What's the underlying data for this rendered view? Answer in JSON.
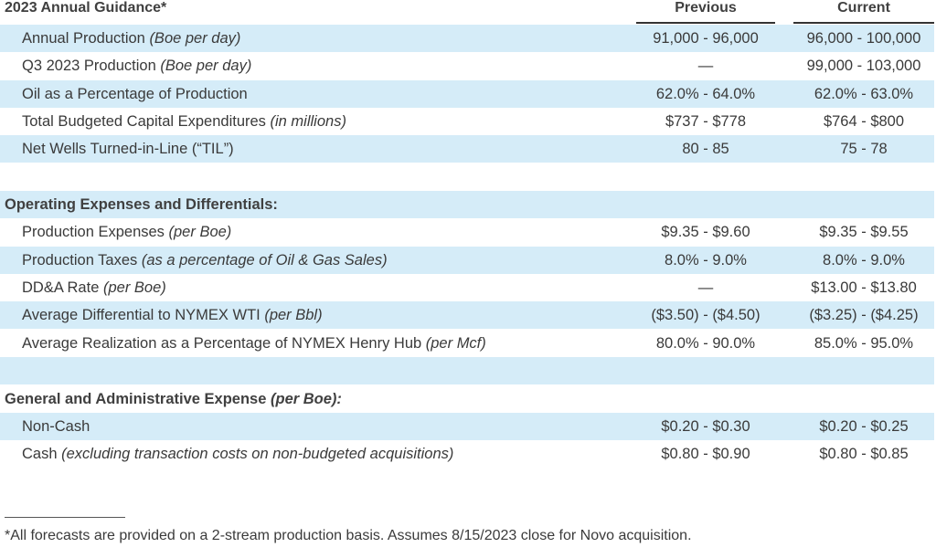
{
  "header": {
    "title": "2023 Annual Guidance*",
    "col_previous": "Previous",
    "col_current": "Current"
  },
  "rows": [
    {
      "label": "Annual Production ",
      "note": "(Boe per day)",
      "previous": "91,000 - 96,000",
      "current": "96,000 - 100,000"
    },
    {
      "label": "Q3 2023 Production ",
      "note": "(Boe per day)",
      "previous": "—",
      "current": "99,000 - 103,000"
    },
    {
      "label": "Oil as a Percentage of Production",
      "note": "",
      "previous": "62.0% - 64.0%",
      "current": "62.0% - 63.0%"
    },
    {
      "label": "Total Budgeted Capital Expenditures ",
      "note": "(in millions)",
      "previous": "$737 - $778",
      "current": "$764 - $800"
    },
    {
      "label": "Net Wells Turned-in-Line (“TIL”)",
      "note": "",
      "previous": "80 - 85",
      "current": "75 - 78"
    },
    {
      "label": "",
      "note": "",
      "previous": "",
      "current": ""
    },
    {
      "section": "Operating Expenses and Differentials:",
      "section_note": ""
    },
    {
      "label": "Production Expenses ",
      "note": "(per Boe)",
      "previous": "$9.35 - $9.60",
      "current": "$9.35 - $9.55"
    },
    {
      "label": "Production Taxes ",
      "note": "(as a percentage of Oil & Gas Sales)",
      "previous": "8.0% - 9.0%",
      "current": "8.0% - 9.0%"
    },
    {
      "label": "DD&A Rate ",
      "note": "(per Boe)",
      "previous": "—",
      "current": "$13.00 - $13.80"
    },
    {
      "label": "Average Differential to NYMEX WTI ",
      "note": "(per Bbl)",
      "previous": "($3.50) - ($4.50)",
      "current": "($3.25) - ($4.25)"
    },
    {
      "label": "Average Realization as a Percentage of NYMEX Henry Hub ",
      "note": "(per Mcf)",
      "previous": "80.0% - 90.0%",
      "current": "85.0% - 95.0%"
    },
    {
      "label": "",
      "note": "",
      "previous": "",
      "current": ""
    },
    {
      "section": "General and Administrative Expense ",
      "section_note": "(per Boe):"
    },
    {
      "label": "Non-Cash",
      "note": "",
      "previous": "$0.20 - $0.30",
      "current": "$0.20 - $0.25"
    },
    {
      "label": "Cash ",
      "note": "(excluding transaction costs on non-budgeted acquisitions)",
      "previous": "$0.80 - $0.90",
      "current": "$0.80 - $0.85"
    }
  ],
  "footnote": "*All forecasts are provided on a 2-stream production basis. Assumes 8/15/2023 close for Novo acquisition."
}
